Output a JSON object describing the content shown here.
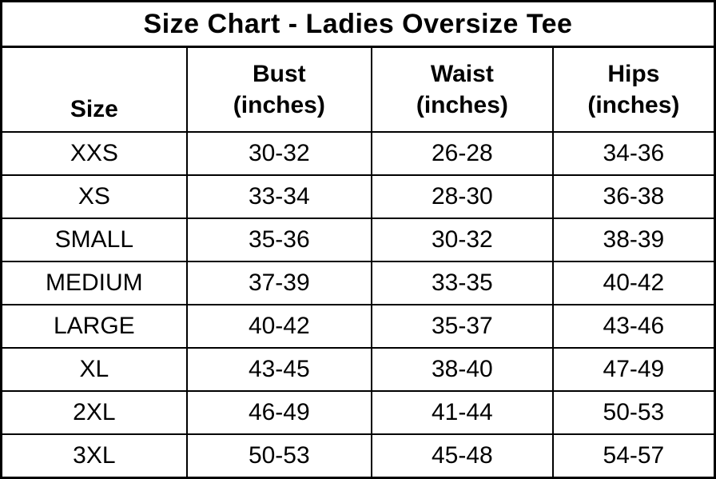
{
  "chart_data": {
    "type": "table",
    "title": "Size Chart - Ladies Oversize Tee",
    "columns": [
      {
        "label": "Size",
        "sub": ""
      },
      {
        "label": "Bust",
        "sub": "(inches)"
      },
      {
        "label": "Waist",
        "sub": "(inches)"
      },
      {
        "label": "Hips",
        "sub": "(inches)"
      }
    ],
    "rows": [
      [
        "XXS",
        "30-32",
        "26-28",
        "34-36"
      ],
      [
        "XS",
        "33-34",
        "28-30",
        "36-38"
      ],
      [
        "SMALL",
        "35-36",
        "30-32",
        "38-39"
      ],
      [
        "MEDIUM",
        "37-39",
        "33-35",
        "40-42"
      ],
      [
        "LARGE",
        "40-42",
        "35-37",
        "43-46"
      ],
      [
        "XL",
        "43-45",
        "38-40",
        "47-49"
      ],
      [
        "2XL",
        "46-49",
        "41-44",
        "50-53"
      ],
      [
        "3XL",
        "50-53",
        "45-48",
        "54-57"
      ]
    ],
    "layout": {
      "border_color": "#000000",
      "background_color": "#ffffff",
      "text_color": "#000000"
    }
  }
}
